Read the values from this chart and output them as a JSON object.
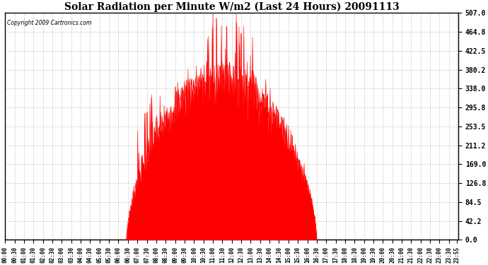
{
  "title": "Solar Radiation per Minute W/m2 (Last 24 Hours) 20091113",
  "copyright": "Copyright 2009 Cartronics.com",
  "fill_color": "#FF0000",
  "line_color": "#FF0000",
  "background_color": "#FFFFFF",
  "plot_bg_color": "#FFFFFF",
  "grid_color": "#AAAAAA",
  "dashed_line_color": "#FF0000",
  "yticks": [
    0.0,
    42.2,
    84.5,
    126.8,
    169.0,
    211.2,
    253.5,
    295.8,
    338.0,
    380.2,
    422.5,
    464.8,
    507.0
  ],
  "ymax": 507.0,
  "ymin": 0.0,
  "xtick_labels": [
    "00:00",
    "00:30",
    "01:00",
    "01:30",
    "02:00",
    "02:30",
    "03:00",
    "03:30",
    "04:00",
    "04:30",
    "05:00",
    "05:30",
    "06:00",
    "06:30",
    "07:00",
    "07:30",
    "08:00",
    "08:30",
    "09:00",
    "09:30",
    "10:00",
    "10:30",
    "11:00",
    "11:30",
    "12:00",
    "12:30",
    "13:00",
    "13:30",
    "14:00",
    "14:30",
    "15:00",
    "15:30",
    "16:00",
    "16:30",
    "17:00",
    "17:30",
    "18:00",
    "18:30",
    "19:00",
    "19:30",
    "20:00",
    "20:30",
    "21:00",
    "21:30",
    "22:00",
    "22:30",
    "23:00",
    "23:30",
    "23:55"
  ],
  "num_minutes": 1440
}
